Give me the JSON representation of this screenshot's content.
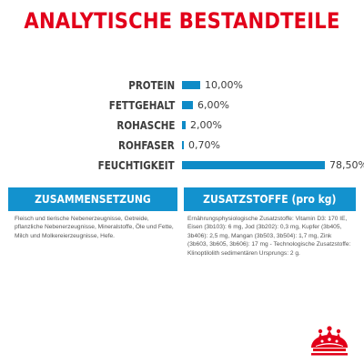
{
  "title": "ANALYTISCHE BESTANDTEILE",
  "chart_data": {
    "type": "bar",
    "categories": [
      "PROTEIN",
      "FETTGEHALT",
      "ROHASCHE",
      "ROHFASER",
      "FEUCHTIGKEIT"
    ],
    "values": [
      10.0,
      6.0,
      2.0,
      0.7,
      78.5
    ],
    "value_labels": [
      "10,00%",
      "6,00%",
      "2,00%",
      "0,70%",
      "78,50%"
    ],
    "orientation": "horizontal",
    "xlim": [
      0,
      78.5
    ],
    "color": "#0f8bc7"
  },
  "composition": {
    "heading": "ZUSAMMENSETZUNG",
    "text": "Fleisch und tierische Nebenerzeugnisse, Getreide, pflanzliche Nebenerzeugnisse, Mineralstoffe, Öle und Fette, Milch und Molkereierzeugnisse, Hefe."
  },
  "additives": {
    "heading": "ZUSATZSTOFFE (pro kg)",
    "text": "Ernährungsphysiologische Zusatzstoffe: Vitamin D3: 170 IE, Eisen (3b103): 6 mg, Jod (3b202): 0,3 mg, Kupfer (3b405, 3b406): 2,5 mg, Mangan (3b503, 3b504): 1,7 mg, Zink (3b603, 3b605, 3b606): 17 mg - Technologische Zusatzstoffe: Klinoptilolith sedimentären Ursprungs: 2 g."
  },
  "logo": {
    "name": "royal-canin-logo",
    "color": "#e2001a"
  }
}
